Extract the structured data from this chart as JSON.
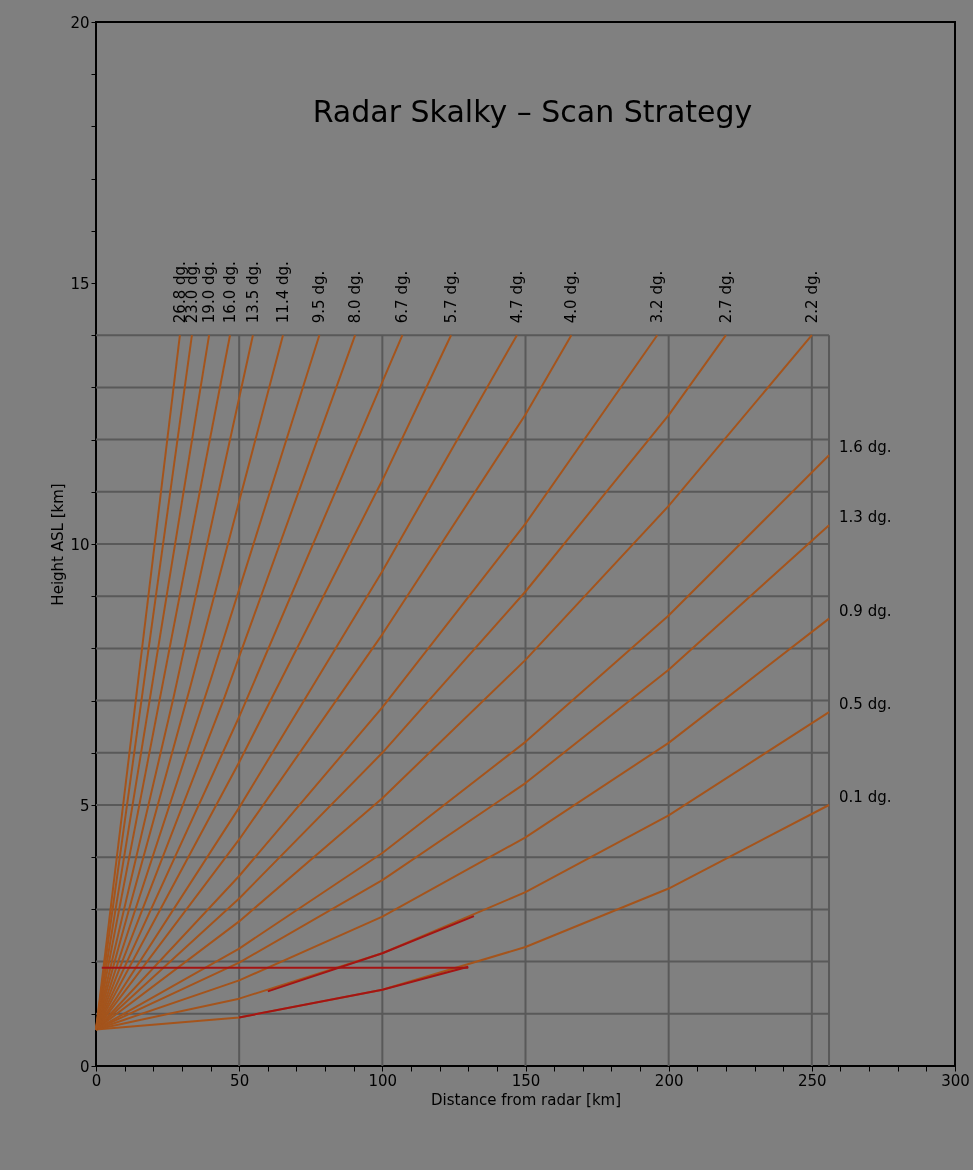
{
  "chart_data": {
    "type": "line",
    "title": "Radar Skalky – Scan Strategy",
    "xlabel": "Distance from radar [km]",
    "ylabel": "Height ASL [km]",
    "xlim": [
      0,
      300
    ],
    "ylim": [
      0,
      20
    ],
    "xticks": [
      0,
      {
        "value": 10,
        "label": null
      },
      {
        "value": 20,
        "label": null
      },
      {
        "value": 30,
        "label": null
      },
      {
        "value": 40,
        "label": null
      },
      50,
      {
        "value": 60,
        "label": null
      },
      {
        "value": 70,
        "label": null
      },
      {
        "value": 80,
        "label": null
      },
      {
        "value": 90,
        "label": null
      },
      100,
      {
        "value": 110,
        "label": null
      },
      {
        "value": 120,
        "label": null
      },
      {
        "value": 130,
        "label": null
      },
      {
        "value": 140,
        "label": null
      },
      150,
      {
        "value": 160,
        "label": null
      },
      {
        "value": 170,
        "label": null
      },
      {
        "value": 180,
        "label": null
      },
      {
        "value": 190,
        "label": null
      },
      200,
      {
        "value": 210,
        "label": null
      },
      {
        "value": 220,
        "label": null
      },
      {
        "value": 230,
        "label": null
      },
      {
        "value": 240,
        "label": null
      },
      250,
      {
        "value": 260,
        "label": null
      },
      {
        "value": 270,
        "label": null
      },
      {
        "value": 280,
        "label": null
      },
      {
        "value": 290,
        "label": null
      },
      300
    ],
    "yticks": [
      0,
      {
        "value": 1,
        "label": null
      },
      {
        "value": 2,
        "label": null
      },
      {
        "value": 3,
        "label": null
      },
      {
        "value": 4,
        "label": null
      },
      5,
      {
        "value": 6,
        "label": null
      },
      {
        "value": 7,
        "label": null
      },
      {
        "value": 8,
        "label": null
      },
      {
        "value": 9,
        "label": null
      },
      10,
      {
        "value": 11,
        "label": null
      },
      {
        "value": 12,
        "label": null
      },
      {
        "value": 13,
        "label": null
      },
      {
        "value": 14,
        "label": null
      },
      15,
      {
        "value": 16,
        "label": null
      },
      {
        "value": 17,
        "label": null
      },
      {
        "value": 18,
        "label": null
      },
      {
        "value": 19,
        "label": null
      },
      20
    ],
    "grid": false,
    "marker": "none",
    "line_style": "solid",
    "ref_lines": [
      {
        "axis": "y",
        "value": 1,
        "color": "#595959"
      },
      {
        "axis": "y",
        "value": 2,
        "color": "#595959"
      },
      {
        "axis": "y",
        "value": 3,
        "color": "#595959"
      },
      {
        "axis": "y",
        "value": 4,
        "color": "#595959"
      },
      {
        "axis": "y",
        "value": 5,
        "color": "#595959"
      },
      {
        "axis": "y",
        "value": 6,
        "color": "#595959"
      },
      {
        "axis": "y",
        "value": 7,
        "color": "#595959"
      },
      {
        "axis": "y",
        "value": 8,
        "color": "#595959"
      },
      {
        "axis": "y",
        "value": 9,
        "color": "#595959"
      },
      {
        "axis": "y",
        "value": 10,
        "color": "#595959"
      },
      {
        "axis": "y",
        "value": 11,
        "color": "#595959"
      },
      {
        "axis": "y",
        "value": 12,
        "color": "#595959"
      },
      {
        "axis": "y",
        "value": 13,
        "color": "#595959"
      },
      {
        "axis": "y",
        "value": 14,
        "color": "#595959"
      },
      {
        "axis": "x",
        "value": 50,
        "color": "#595959"
      },
      {
        "axis": "x",
        "value": 100,
        "color": "#595959"
      },
      {
        "axis": "x",
        "value": 150,
        "color": "#595959"
      },
      {
        "axis": "x",
        "value": 200,
        "color": "#595959"
      },
      {
        "axis": "x",
        "value": 250,
        "color": "#595959"
      },
      {
        "axis": "x",
        "value": 256,
        "color": "#595959"
      }
    ],
    "series": [
      {
        "name": "0.1 dg.",
        "color": "#a4541c",
        "x": [
          0,
          50,
          100,
          150,
          200,
          256
        ],
        "values": [
          0.7,
          0.93,
          1.46,
          2.28,
          3.4,
          5.0
        ]
      },
      {
        "name": "0.5 dg.",
        "color": "#a4541c",
        "x": [
          0,
          50,
          100,
          150,
          200,
          256
        ],
        "values": [
          0.7,
          1.29,
          2.16,
          3.33,
          4.8,
          6.78
        ]
      },
      {
        "name": "0.9 dg.",
        "color": "#a4541c",
        "x": [
          0,
          50,
          100,
          150,
          200,
          256
        ],
        "values": [
          0.7,
          1.64,
          2.86,
          4.38,
          6.19,
          8.57
        ]
      },
      {
        "name": "1.3 dg.",
        "color": "#a4541c",
        "x": [
          0,
          50,
          100,
          150,
          200,
          256
        ],
        "values": [
          0.7,
          1.98,
          3.56,
          5.42,
          7.59,
          10.36
        ]
      },
      {
        "name": "1.6 dg.",
        "color": "#a4541c",
        "x": [
          0,
          50,
          100,
          150,
          200,
          256
        ],
        "values": [
          0.7,
          2.25,
          4.08,
          6.21,
          8.63,
          11.7
        ]
      },
      {
        "name": "2.2 dg.",
        "color": "#a4541c",
        "x": [
          0,
          50,
          100,
          150,
          200,
          250
        ],
        "values": [
          0.7,
          2.77,
          5.13,
          7.78,
          10.73,
          14
        ]
      },
      {
        "name": "2.7 dg.",
        "color": "#a4541c",
        "x": [
          0,
          50,
          100,
          150,
          200,
          220
        ],
        "values": [
          0.7,
          3.21,
          6.0,
          9.09,
          12.47,
          14
        ]
      },
      {
        "name": "3.2 dg.",
        "color": "#a4541c",
        "x": [
          0,
          50,
          100,
          150,
          196
        ],
        "values": [
          0.7,
          3.64,
          6.87,
          10.39,
          14
        ]
      },
      {
        "name": "4.0 dg.",
        "color": "#a4541c",
        "x": [
          0,
          50,
          100,
          150,
          166
        ],
        "values": [
          0.7,
          4.34,
          8.27,
          12.48,
          14
        ]
      },
      {
        "name": "4.7 dg.",
        "color": "#a4541c",
        "x": [
          0,
          50,
          100,
          147
        ],
        "values": [
          0.7,
          4.95,
          9.48,
          14
        ]
      },
      {
        "name": "5.7 dg.",
        "color": "#a4541c",
        "x": [
          0,
          50,
          100,
          124
        ],
        "values": [
          0.7,
          5.82,
          11.22,
          14
        ]
      },
      {
        "name": "6.7 dg.",
        "color": "#a4541c",
        "x": [
          0,
          50,
          107
        ],
        "values": [
          0.7,
          6.69,
          14
        ]
      },
      {
        "name": "8.0 dg.",
        "color": "#a4541c",
        "x": [
          0,
          45,
          90.5
        ],
        "values": [
          0.7,
          7.08,
          14
        ]
      },
      {
        "name": "9.5 dg.",
        "color": "#a4541c",
        "x": [
          0,
          40,
          78
        ],
        "values": [
          0.7,
          7.39,
          14
        ]
      },
      {
        "name": "11.4 dg.",
        "color": "#a4541c",
        "x": [
          0,
          33,
          65.3
        ],
        "values": [
          0.7,
          7.28,
          14
        ]
      },
      {
        "name": "13.5 dg.",
        "color": "#a4541c",
        "x": [
          0,
          27,
          54.8
        ],
        "values": [
          0.7,
          7.04,
          14
        ]
      },
      {
        "name": "16.0 dg.",
        "color": "#a4541c",
        "x": [
          0,
          46.8
        ],
        "values": [
          0.7,
          14
        ]
      },
      {
        "name": "19.0 dg.",
        "color": "#a4541c",
        "x": [
          0,
          39.5
        ],
        "values": [
          0.7,
          14
        ]
      },
      {
        "name": "23.0 dg.",
        "color": "#a4541c",
        "x": [
          0,
          33.5
        ],
        "values": [
          0.7,
          14
        ]
      },
      {
        "name": "26.8 dg.",
        "color": "#a4541c",
        "x": [
          0,
          29.3
        ],
        "values": [
          0.7,
          14
        ]
      },
      {
        "color": "#a31414",
        "x": [
          2,
          130
        ],
        "values": [
          1.88,
          1.88
        ]
      },
      {
        "color": "#a31414",
        "x": [
          50,
          100,
          130
        ],
        "values": [
          0.93,
          1.46,
          1.9
        ]
      },
      {
        "color": "#a31414",
        "x": [
          60,
          100,
          132
        ],
        "values": [
          1.43,
          2.16,
          2.87
        ]
      }
    ]
  }
}
